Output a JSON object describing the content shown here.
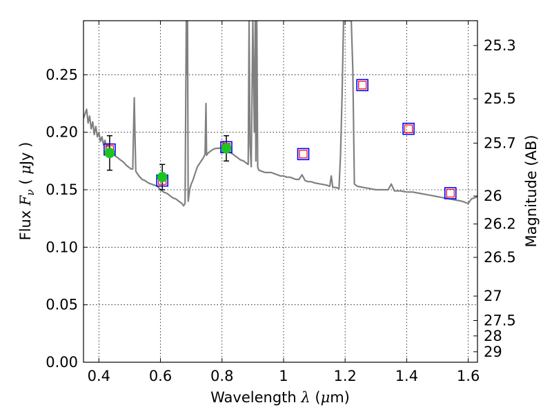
{
  "chart_data": {
    "type": "scatter",
    "title": "",
    "xlabel": {
      "prefix": "Wavelength  ",
      "symbol": "λ",
      "suffix": " (",
      "mu": "μ",
      "unit": "m)"
    },
    "ylabel": {
      "prefix": "Flux  ",
      "symbol": "F",
      "sub": "ν",
      "mid": "  (  ",
      "mu": "μ",
      "unit": "Jy )"
    },
    "y2label": "Magnitude (AB)",
    "xlim": [
      0.35,
      1.63
    ],
    "ylim": [
      0.0,
      0.297
    ],
    "grid": true,
    "x_ticks": [
      {
        "value": 0.4,
        "label": "0.4"
      },
      {
        "value": 0.6,
        "label": "0.6"
      },
      {
        "value": 0.8,
        "label": "0.8"
      },
      {
        "value": 1.0,
        "label": "1"
      },
      {
        "value": 1.2,
        "label": "1.2"
      },
      {
        "value": 1.4,
        "label": "1.4"
      },
      {
        "value": 1.6,
        "label": "1.6"
      }
    ],
    "y_ticks": [
      {
        "value": 0.0,
        "label": "0.00"
      },
      {
        "value": 0.05,
        "label": "0.05"
      },
      {
        "value": 0.1,
        "label": "0.10"
      },
      {
        "value": 0.15,
        "label": "0.15"
      },
      {
        "value": 0.2,
        "label": "0.20"
      },
      {
        "value": 0.25,
        "label": "0.25"
      }
    ],
    "mag_ticks": [
      {
        "value": 25.3,
        "label": "25.3"
      },
      {
        "value": 25.5,
        "label": "25.5"
      },
      {
        "value": 25.7,
        "label": "25.7"
      },
      {
        "value": 26.0,
        "label": "26"
      },
      {
        "value": 26.2,
        "label": "26.2"
      },
      {
        "value": 26.5,
        "label": "26.5"
      },
      {
        "value": 27.0,
        "label": "27"
      },
      {
        "value": 27.5,
        "label": "27.5"
      },
      {
        "value": 28.0,
        "label": "28"
      },
      {
        "value": 29.0,
        "label": "29"
      }
    ],
    "colors": {
      "spectrum": "#808080",
      "observed": "#1fc41f",
      "model_box": "#0000ff",
      "model_inner": "#ff0000",
      "errorbar": "#000000",
      "grid": "#000000"
    },
    "spectrum": {
      "x": [
        0.35,
        0.355,
        0.36,
        0.365,
        0.37,
        0.375,
        0.38,
        0.385,
        0.39,
        0.395,
        0.4,
        0.405,
        0.41,
        0.415,
        0.42,
        0.425,
        0.43,
        0.435,
        0.44,
        0.445,
        0.45,
        0.46,
        0.47,
        0.48,
        0.49,
        0.5,
        0.505,
        0.51,
        0.512,
        0.515,
        0.518,
        0.52,
        0.53,
        0.54,
        0.55,
        0.56,
        0.57,
        0.58,
        0.59,
        0.6,
        0.61,
        0.62,
        0.63,
        0.64,
        0.65,
        0.66,
        0.67,
        0.675,
        0.68,
        0.684,
        0.686,
        0.688,
        0.69,
        0.695,
        0.7,
        0.705,
        0.71,
        0.715,
        0.72,
        0.73,
        0.74,
        0.745,
        0.748,
        0.75,
        0.755,
        0.76,
        0.77,
        0.78,
        0.79,
        0.8,
        0.805,
        0.81,
        0.815,
        0.82,
        0.83,
        0.84,
        0.85,
        0.86,
        0.87,
        0.88,
        0.885,
        0.888,
        0.891,
        0.895,
        0.9,
        0.905,
        0.908,
        0.91,
        0.913,
        0.916,
        0.918,
        0.92,
        0.93,
        0.94,
        0.95,
        0.96,
        0.97,
        0.98,
        0.99,
        1.0,
        1.01,
        1.02,
        1.03,
        1.04,
        1.05,
        1.06,
        1.07,
        1.08,
        1.09,
        1.1,
        1.12,
        1.14,
        1.15,
        1.155,
        1.16,
        1.17,
        1.18,
        1.185,
        1.19,
        1.195,
        1.2,
        1.205,
        1.21,
        1.215,
        1.22,
        1.225,
        1.23,
        1.24,
        1.26,
        1.28,
        1.3,
        1.32,
        1.34,
        1.35,
        1.36,
        1.38,
        1.4,
        1.42,
        1.44,
        1.46,
        1.48,
        1.5,
        1.52,
        1.54,
        1.56,
        1.58,
        1.6,
        1.61,
        1.62,
        1.63
      ],
      "y": [
        0.212,
        0.216,
        0.22,
        0.208,
        0.214,
        0.203,
        0.209,
        0.198,
        0.205,
        0.196,
        0.2,
        0.192,
        0.196,
        0.189,
        0.193,
        0.187,
        0.19,
        0.186,
        0.184,
        0.182,
        0.18,
        0.178,
        0.176,
        0.174,
        0.171,
        0.169,
        0.168,
        0.168,
        0.195,
        0.23,
        0.19,
        0.166,
        0.162,
        0.159,
        0.158,
        0.156,
        0.155,
        0.154,
        0.153,
        0.15,
        0.148,
        0.147,
        0.145,
        0.143,
        0.142,
        0.14,
        0.138,
        0.136,
        0.138,
        0.297,
        0.25,
        0.297,
        0.14,
        0.15,
        0.155,
        0.158,
        0.162,
        0.166,
        0.17,
        0.174,
        0.178,
        0.181,
        0.225,
        0.18,
        0.182,
        0.183,
        0.185,
        0.186,
        0.186,
        0.187,
        0.192,
        0.188,
        0.186,
        0.185,
        0.182,
        0.18,
        0.178,
        0.176,
        0.175,
        0.173,
        0.172,
        0.297,
        0.19,
        0.17,
        0.297,
        0.2,
        0.297,
        0.175,
        0.297,
        0.17,
        0.168,
        0.167,
        0.166,
        0.165,
        0.165,
        0.165,
        0.164,
        0.163,
        0.162,
        0.162,
        0.161,
        0.161,
        0.16,
        0.159,
        0.159,
        0.163,
        0.158,
        0.157,
        0.157,
        0.156,
        0.155,
        0.154,
        0.153,
        0.162,
        0.152,
        0.152,
        0.151,
        0.18,
        0.23,
        0.297,
        0.297,
        0.297,
        0.297,
        0.297,
        0.297,
        0.255,
        0.155,
        0.153,
        0.152,
        0.151,
        0.15,
        0.15,
        0.15,
        0.155,
        0.149,
        0.149,
        0.148,
        0.148,
        0.147,
        0.146,
        0.145,
        0.144,
        0.143,
        0.142,
        0.141,
        0.14,
        0.138,
        0.142,
        0.143,
        0.144
      ]
    },
    "observed": [
      {
        "x": 0.435,
        "y": 0.182,
        "err": 0.015
      },
      {
        "x": 0.606,
        "y": 0.161,
        "err": 0.011
      },
      {
        "x": 0.814,
        "y": 0.186,
        "err": 0.011
      }
    ],
    "model_points": [
      {
        "x": 0.435,
        "y": 0.185
      },
      {
        "x": 0.606,
        "y": 0.158
      },
      {
        "x": 0.814,
        "y": 0.187
      },
      {
        "x": 1.064,
        "y": 0.181
      },
      {
        "x": 1.256,
        "y": 0.241
      },
      {
        "x": 1.406,
        "y": 0.203
      },
      {
        "x": 1.542,
        "y": 0.147
      }
    ]
  }
}
